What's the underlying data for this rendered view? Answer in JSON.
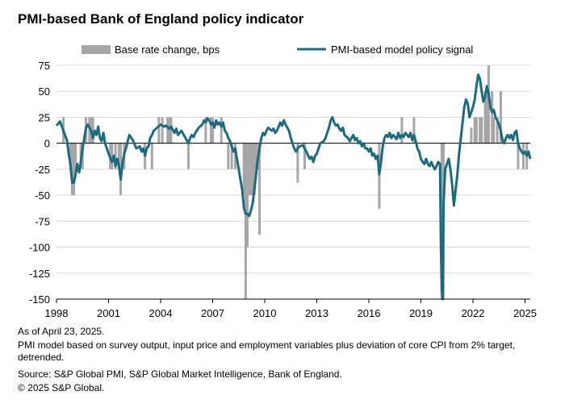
{
  "title": "PMI-based Bank of England policy indicator",
  "notes": {
    "as_of": "As of April 23, 2025.",
    "model": "PMI model based on survey output, input price and employment variables plus deviation of core CPI from 2% target, detrended.",
    "source": "Source: S&P Global PMI, S&P Global Market Intelligence, Bank of England.",
    "copyright": "© 2025 S&P Global."
  },
  "colors": {
    "bars": "#a6a6a6",
    "line": "#1b6a80",
    "grid": "#d9d9d9"
  },
  "chart_data": {
    "type": "bar+line",
    "legend_position": "top",
    "grid": true,
    "ylim": [
      -150,
      75
    ],
    "yticks": [
      75,
      50,
      25,
      0,
      -25,
      -50,
      -75,
      -100,
      -125,
      -150
    ],
    "xlim": [
      1998.0,
      2025.3
    ],
    "xticks": [
      1998,
      2001,
      2004,
      2007,
      2010,
      2013,
      2016,
      2019,
      2022,
      2025
    ],
    "bars": {
      "name": "Base rate change, bps",
      "points": [
        [
          1998.4,
          25
        ],
        [
          1998.8,
          -25
        ],
        [
          1998.9,
          -50
        ],
        [
          1999.0,
          -50
        ],
        [
          1999.1,
          -25
        ],
        [
          1999.4,
          -25
        ],
        [
          1999.5,
          -25
        ],
        [
          1999.7,
          25
        ],
        [
          1999.9,
          25
        ],
        [
          2000.0,
          25
        ],
        [
          2000.1,
          25
        ],
        [
          2001.1,
          -25
        ],
        [
          2001.2,
          -25
        ],
        [
          2001.4,
          -25
        ],
        [
          2001.6,
          -25
        ],
        [
          2001.7,
          -50
        ],
        [
          2001.9,
          -25
        ],
        [
          2003.1,
          -25
        ],
        [
          2003.5,
          -25
        ],
        [
          2003.9,
          25
        ],
        [
          2004.1,
          25
        ],
        [
          2004.4,
          25
        ],
        [
          2004.5,
          25
        ],
        [
          2004.6,
          25
        ],
        [
          2005.6,
          -25
        ],
        [
          2006.6,
          25
        ],
        [
          2006.9,
          25
        ],
        [
          2007.0,
          25
        ],
        [
          2007.5,
          25
        ],
        [
          2007.9,
          -25
        ],
        [
          2008.1,
          -25
        ],
        [
          2008.3,
          -25
        ],
        [
          2008.8,
          -50
        ],
        [
          2008.9,
          -150
        ],
        [
          2009.0,
          -100
        ],
        [
          2009.1,
          -50
        ],
        [
          2009.2,
          -50
        ],
        [
          2009.3,
          -50
        ],
        [
          2009.4,
          -50
        ],
        [
          2009.5,
          -25
        ],
        [
          2009.6,
          -25
        ],
        [
          2009.7,
          -88
        ],
        [
          2011.9,
          -38
        ],
        [
          2012.3,
          -25
        ],
        [
          2016.6,
          -63
        ],
        [
          2017.9,
          25
        ],
        [
          2018.6,
          25
        ],
        [
          2020.2,
          -150
        ],
        [
          2020.3,
          -150
        ],
        [
          2021.9,
          15
        ],
        [
          2022.1,
          25
        ],
        [
          2022.2,
          25
        ],
        [
          2022.4,
          25
        ],
        [
          2022.5,
          25
        ],
        [
          2022.7,
          50
        ],
        [
          2022.8,
          50
        ],
        [
          2022.9,
          75
        ],
        [
          2023.1,
          50
        ],
        [
          2023.2,
          25
        ],
        [
          2023.4,
          25
        ],
        [
          2023.6,
          50
        ],
        [
          2024.6,
          -25
        ],
        [
          2024.9,
          -25
        ],
        [
          2025.1,
          -25
        ]
      ]
    },
    "line": {
      "name": "PMI-based model policy signal",
      "points": [
        [
          1998.0,
          17
        ],
        [
          1998.2,
          21
        ],
        [
          1998.4,
          12
        ],
        [
          1998.6,
          3
        ],
        [
          1998.7,
          -10
        ],
        [
          1998.8,
          -20
        ],
        [
          1998.9,
          -38
        ],
        [
          1999.0,
          -38
        ],
        [
          1999.1,
          -30
        ],
        [
          1999.2,
          -20
        ],
        [
          1999.3,
          -28
        ],
        [
          1999.4,
          -18
        ],
        [
          1999.5,
          -5
        ],
        [
          1999.6,
          5
        ],
        [
          1999.7,
          15
        ],
        [
          1999.8,
          18
        ],
        [
          2000.0,
          12
        ],
        [
          2000.1,
          5
        ],
        [
          2000.2,
          12
        ],
        [
          2000.3,
          8
        ],
        [
          2000.4,
          16
        ],
        [
          2000.5,
          5
        ],
        [
          2000.6,
          2
        ],
        [
          2000.7,
          10
        ],
        [
          2000.8,
          0
        ],
        [
          2000.9,
          -5
        ],
        [
          2001.0,
          -10
        ],
        [
          2001.2,
          -18
        ],
        [
          2001.3,
          -12
        ],
        [
          2001.4,
          -22
        ],
        [
          2001.5,
          -15
        ],
        [
          2001.6,
          -22
        ],
        [
          2001.7,
          -35
        ],
        [
          2001.8,
          -20
        ],
        [
          2001.9,
          -10
        ],
        [
          2002.0,
          -5
        ],
        [
          2002.1,
          2
        ],
        [
          2002.2,
          8
        ],
        [
          2002.4,
          3
        ],
        [
          2002.6,
          -5
        ],
        [
          2002.8,
          -3
        ],
        [
          2002.9,
          -8
        ],
        [
          2003.0,
          -5
        ],
        [
          2003.1,
          -12
        ],
        [
          2003.2,
          -5
        ],
        [
          2003.3,
          -3
        ],
        [
          2003.4,
          5
        ],
        [
          2003.5,
          8
        ],
        [
          2003.6,
          12
        ],
        [
          2003.8,
          15
        ],
        [
          2004.0,
          18
        ],
        [
          2004.2,
          16
        ],
        [
          2004.3,
          17
        ],
        [
          2004.5,
          14
        ],
        [
          2004.6,
          16
        ],
        [
          2004.8,
          10
        ],
        [
          2004.9,
          14
        ],
        [
          2005.0,
          8
        ],
        [
          2005.2,
          12
        ],
        [
          2005.4,
          6
        ],
        [
          2005.5,
          3
        ],
        [
          2005.6,
          0
        ],
        [
          2005.7,
          5
        ],
        [
          2005.8,
          8
        ],
        [
          2005.9,
          6
        ],
        [
          2006.0,
          10
        ],
        [
          2006.2,
          15
        ],
        [
          2006.4,
          18
        ],
        [
          2006.5,
          22
        ],
        [
          2006.6,
          20
        ],
        [
          2006.7,
          24
        ],
        [
          2006.8,
          22
        ],
        [
          2006.9,
          18
        ],
        [
          2007.0,
          20
        ],
        [
          2007.1,
          15
        ],
        [
          2007.2,
          22
        ],
        [
          2007.3,
          18
        ],
        [
          2007.4,
          20
        ],
        [
          2007.5,
          16
        ],
        [
          2007.6,
          20
        ],
        [
          2007.7,
          12
        ],
        [
          2007.8,
          10
        ],
        [
          2007.9,
          5
        ],
        [
          2008.0,
          2
        ],
        [
          2008.1,
          -3
        ],
        [
          2008.2,
          -8
        ],
        [
          2008.3,
          -5
        ],
        [
          2008.4,
          -15
        ],
        [
          2008.5,
          -25
        ],
        [
          2008.6,
          -35
        ],
        [
          2008.7,
          -45
        ],
        [
          2008.8,
          -62
        ],
        [
          2008.9,
          -68
        ],
        [
          2009.0,
          -68
        ],
        [
          2009.1,
          -70
        ],
        [
          2009.2,
          -65
        ],
        [
          2009.3,
          -58
        ],
        [
          2009.4,
          -45
        ],
        [
          2009.5,
          -30
        ],
        [
          2009.6,
          -15
        ],
        [
          2009.7,
          -5
        ],
        [
          2009.8,
          5
        ],
        [
          2009.9,
          10
        ],
        [
          2010.0,
          8
        ],
        [
          2010.1,
          12
        ],
        [
          2010.2,
          15
        ],
        [
          2010.4,
          12
        ],
        [
          2010.5,
          14
        ],
        [
          2010.6,
          10
        ],
        [
          2010.7,
          12
        ],
        [
          2010.8,
          16
        ],
        [
          2010.9,
          20
        ],
        [
          2011.0,
          17
        ],
        [
          2011.1,
          22
        ],
        [
          2011.2,
          18
        ],
        [
          2011.3,
          15
        ],
        [
          2011.4,
          12
        ],
        [
          2011.5,
          5
        ],
        [
          2011.6,
          0
        ],
        [
          2011.7,
          -5
        ],
        [
          2011.8,
          -8
        ],
        [
          2011.9,
          -5
        ],
        [
          2012.0,
          -3
        ],
        [
          2012.2,
          -2
        ],
        [
          2012.4,
          -8
        ],
        [
          2012.5,
          -12
        ],
        [
          2012.6,
          -15
        ],
        [
          2012.7,
          -13
        ],
        [
          2012.8,
          -18
        ],
        [
          2012.9,
          -12
        ],
        [
          2013.0,
          -10
        ],
        [
          2013.1,
          -5
        ],
        [
          2013.2,
          0
        ],
        [
          2013.4,
          2
        ],
        [
          2013.5,
          5
        ],
        [
          2013.6,
          10
        ],
        [
          2013.7,
          15
        ],
        [
          2013.8,
          22
        ],
        [
          2013.9,
          25
        ],
        [
          2014.0,
          20
        ],
        [
          2014.1,
          17
        ],
        [
          2014.2,
          18
        ],
        [
          2014.3,
          14
        ],
        [
          2014.4,
          12
        ],
        [
          2014.5,
          15
        ],
        [
          2014.6,
          8
        ],
        [
          2014.8,
          5
        ],
        [
          2014.9,
          2
        ],
        [
          2015.0,
          5
        ],
        [
          2015.1,
          8
        ],
        [
          2015.2,
          3
        ],
        [
          2015.3,
          5
        ],
        [
          2015.4,
          0
        ],
        [
          2015.5,
          2
        ],
        [
          2015.6,
          -3
        ],
        [
          2015.7,
          0
        ],
        [
          2015.8,
          -5
        ],
        [
          2015.9,
          -5
        ],
        [
          2016.0,
          -8
        ],
        [
          2016.1,
          -5
        ],
        [
          2016.2,
          -12
        ],
        [
          2016.3,
          -10
        ],
        [
          2016.4,
          -15
        ],
        [
          2016.5,
          -12
        ],
        [
          2016.6,
          -30
        ],
        [
          2016.7,
          -18
        ],
        [
          2016.8,
          -3
        ],
        [
          2016.9,
          5
        ],
        [
          2017.0,
          8
        ],
        [
          2017.1,
          6
        ],
        [
          2017.2,
          10
        ],
        [
          2017.3,
          5
        ],
        [
          2017.4,
          8
        ],
        [
          2017.5,
          6
        ],
        [
          2017.6,
          4
        ],
        [
          2017.7,
          10
        ],
        [
          2017.8,
          5
        ],
        [
          2017.9,
          8
        ],
        [
          2018.0,
          6
        ],
        [
          2018.1,
          10
        ],
        [
          2018.2,
          8
        ],
        [
          2018.3,
          6
        ],
        [
          2018.4,
          10
        ],
        [
          2018.5,
          3
        ],
        [
          2018.6,
          8
        ],
        [
          2018.7,
          2
        ],
        [
          2018.8,
          -5
        ],
        [
          2018.9,
          -8
        ],
        [
          2019.0,
          -15
        ],
        [
          2019.1,
          -18
        ],
        [
          2019.2,
          -20
        ],
        [
          2019.3,
          -15
        ],
        [
          2019.4,
          -20
        ],
        [
          2019.5,
          -22
        ],
        [
          2019.6,
          -18
        ],
        [
          2019.7,
          -22
        ],
        [
          2019.8,
          -25
        ],
        [
          2019.9,
          -22
        ],
        [
          2020.0,
          -18
        ],
        [
          2020.1,
          -20
        ],
        [
          2020.15,
          -100
        ],
        [
          2020.2,
          -140
        ],
        [
          2020.25,
          -150
        ],
        [
          2020.3,
          -60
        ],
        [
          2020.4,
          -25
        ],
        [
          2020.5,
          -20
        ],
        [
          2020.6,
          -15
        ],
        [
          2020.7,
          -25
        ],
        [
          2020.8,
          -40
        ],
        [
          2020.9,
          -60
        ],
        [
          2021.0,
          -45
        ],
        [
          2021.1,
          -30
        ],
        [
          2021.2,
          -10
        ],
        [
          2021.3,
          5
        ],
        [
          2021.4,
          20
        ],
        [
          2021.5,
          35
        ],
        [
          2021.6,
          42
        ],
        [
          2021.7,
          38
        ],
        [
          2021.8,
          25
        ],
        [
          2021.9,
          30
        ],
        [
          2022.0,
          35
        ],
        [
          2022.1,
          42
        ],
        [
          2022.2,
          55
        ],
        [
          2022.3,
          66
        ],
        [
          2022.4,
          62
        ],
        [
          2022.5,
          50
        ],
        [
          2022.6,
          40
        ],
        [
          2022.7,
          45
        ],
        [
          2022.8,
          55
        ],
        [
          2022.9,
          48
        ],
        [
          2023.0,
          35
        ],
        [
          2023.1,
          30
        ],
        [
          2023.2,
          32
        ],
        [
          2023.3,
          25
        ],
        [
          2023.4,
          22
        ],
        [
          2023.5,
          18
        ],
        [
          2023.6,
          12
        ],
        [
          2023.7,
          3
        ],
        [
          2023.8,
          0
        ],
        [
          2023.9,
          5
        ],
        [
          2024.0,
          8
        ],
        [
          2024.1,
          5
        ],
        [
          2024.2,
          8
        ],
        [
          2024.3,
          3
        ],
        [
          2024.4,
          10
        ],
        [
          2024.5,
          12
        ],
        [
          2024.6,
          0
        ],
        [
          2024.7,
          -5
        ],
        [
          2024.8,
          -8
        ],
        [
          2024.9,
          -10
        ],
        [
          2025.0,
          -8
        ],
        [
          2025.1,
          -12
        ],
        [
          2025.2,
          -8
        ],
        [
          2025.3,
          -15
        ]
      ]
    }
  }
}
